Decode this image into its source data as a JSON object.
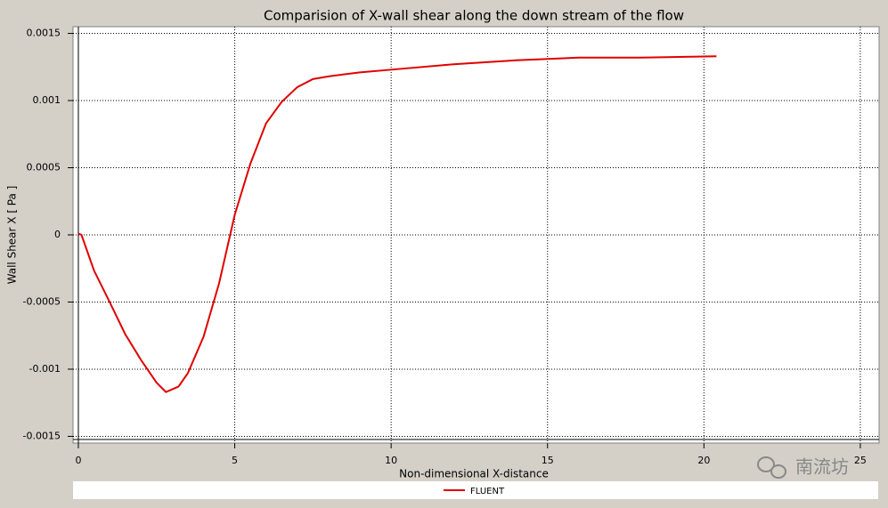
{
  "chart_data": {
    "type": "line",
    "title": "Comparision of X-wall shear along the down stream of the flow",
    "x_label": "Non-dimensional X-distance",
    "y_label": "Wall Shear X [ Pa ]",
    "x": [
      0,
      0.1,
      0.5,
      1,
      1.5,
      2,
      2.5,
      2.8,
      3.2,
      3.5,
      4,
      4.5,
      5,
      5.5,
      6,
      6.5,
      7,
      7.5,
      8,
      9,
      10,
      12,
      14,
      16,
      18,
      20.4
    ],
    "series": [
      {
        "name": "FLUENT",
        "color": "#e00000",
        "values": [
          1e-05,
          0,
          -0.000265,
          -0.0005,
          -0.00074,
          -0.00093,
          -0.0011,
          -0.00117,
          -0.00113,
          -0.00103,
          -0.00076,
          -0.00036,
          0.00015,
          0.00053,
          0.00083,
          0.00099,
          0.0011,
          0.00116,
          0.00118,
          0.00121,
          0.00123,
          0.00127,
          0.0013,
          0.00132,
          0.00132,
          0.00133
        ]
      }
    ],
    "xlim": [
      -0.17,
      25.6
    ],
    "ylim": [
      -0.00155,
      0.00155
    ],
    "xticks": [
      0,
      5,
      10,
      15,
      20,
      25
    ],
    "yticks": [
      -0.0015,
      -0.001,
      -0.0005,
      0,
      0.0005,
      0.001,
      0.0015
    ],
    "grid": true,
    "legend": "bottom",
    "watermark": "南流坊"
  }
}
